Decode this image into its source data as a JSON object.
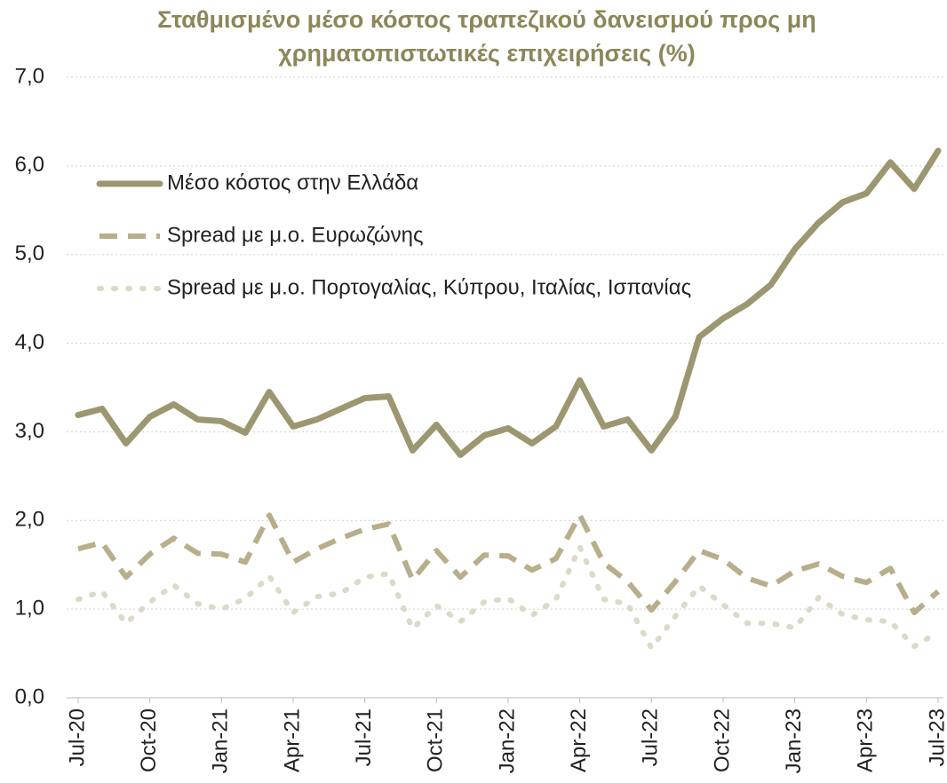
{
  "chart_data": {
    "type": "line",
    "title": "Σταθμισμένο μέσο κόστος τραπεζικού δανεισμού προς μη χρηματοπιστωτικές επιχειρήσεις (%)",
    "categories": [
      "Jul-20",
      null,
      null,
      "Oct-20",
      null,
      null,
      "Jan-21",
      null,
      null,
      "Apr-21",
      null,
      null,
      "Jul-21",
      null,
      null,
      "Oct-21",
      null,
      null,
      "Jan-22",
      null,
      null,
      "Apr-22",
      null,
      null,
      "Jul-22",
      null,
      null,
      "Oct-22",
      null,
      null,
      "Jan-23",
      null,
      null,
      "Apr-23",
      null,
      null,
      "Jul-23"
    ],
    "series": [
      {
        "name": "Μέσο κόστος στην Ελλάδα",
        "color": "#9c9770",
        "dash": "solid",
        "values": [
          3.19,
          3.26,
          2.87,
          3.17,
          3.31,
          3.14,
          3.12,
          2.99,
          3.45,
          3.06,
          3.14,
          3.26,
          3.38,
          3.4,
          2.79,
          3.08,
          2.74,
          2.96,
          3.04,
          2.87,
          3.06,
          3.58,
          3.06,
          3.14,
          2.79,
          3.17,
          4.07,
          4.28,
          4.44,
          4.66,
          5.06,
          5.36,
          5.59,
          5.69,
          6.04,
          5.74,
          6.17
        ]
      },
      {
        "name": "Spread με μ.ο. Ευρωζώνης",
        "color": "#b9ae8b",
        "dash": "dashed",
        "values": [
          1.68,
          1.75,
          1.36,
          1.62,
          1.8,
          1.63,
          1.62,
          1.53,
          2.06,
          1.53,
          1.68,
          1.8,
          1.9,
          1.96,
          1.33,
          1.66,
          1.36,
          1.61,
          1.6,
          1.44,
          1.57,
          2.06,
          1.52,
          1.31,
          0.99,
          1.31,
          1.66,
          1.56,
          1.35,
          1.26,
          1.43,
          1.51,
          1.37,
          1.3,
          1.46,
          0.96,
          1.2
        ]
      },
      {
        "name": "Spread με μ.ο. Πορτογαλίας, Κύπρου, Ιταλίας, Ισπανίας",
        "color": "#dcd9c8",
        "dash": "dotted",
        "values": [
          1.11,
          1.2,
          0.84,
          1.08,
          1.27,
          1.06,
          1.0,
          1.12,
          1.37,
          0.96,
          1.14,
          1.18,
          1.36,
          1.4,
          0.78,
          1.04,
          0.86,
          1.08,
          1.12,
          0.93,
          1.11,
          1.7,
          1.11,
          1.06,
          0.56,
          0.92,
          1.26,
          1.05,
          0.84,
          0.84,
          0.79,
          1.13,
          0.94,
          0.88,
          0.86,
          0.58,
          0.74
        ]
      }
    ],
    "ylim": [
      0,
      7
    ],
    "yticks": [
      {
        "value": 0,
        "label": "0,0"
      },
      {
        "value": 1,
        "label": "1,0"
      },
      {
        "value": 2,
        "label": "2,0"
      },
      {
        "value": 3,
        "label": "3,0"
      },
      {
        "value": 4,
        "label": "4,0"
      },
      {
        "value": 5,
        "label": "5,0"
      },
      {
        "value": 6,
        "label": "6,0"
      },
      {
        "value": 7,
        "label": "7,0"
      }
    ],
    "grid": true,
    "legend": "upper left"
  }
}
